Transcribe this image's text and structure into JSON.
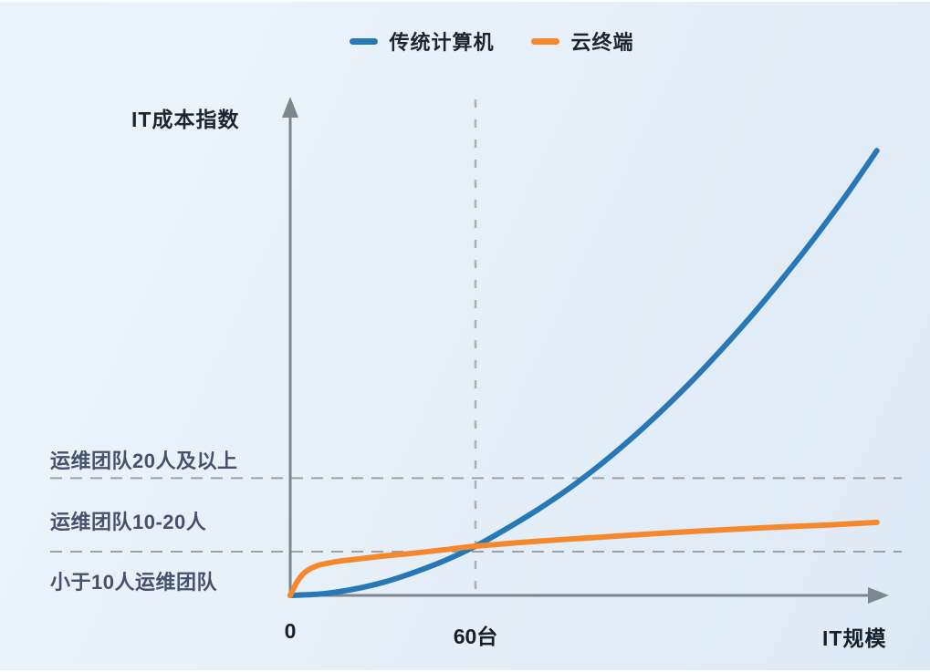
{
  "ui_colors": {
    "background_start": "#ecf4fb",
    "background_end": "#dde9f4",
    "axis_gray": "#7e868f",
    "dashed_gray": "#9aa1aa",
    "text_dark": "#1b2432",
    "text_zone": "#44536b"
  },
  "chart_data": {
    "type": "line",
    "title": "",
    "xlabel": "IT规模",
    "ylabel": "IT成本指数",
    "x_unit": "台",
    "x_range": [
      0,
      194
    ],
    "y_range": [
      0,
      10
    ],
    "grid": false,
    "legend_position": "top-center",
    "x_ticks": [
      {
        "x": 0,
        "label": "0"
      },
      {
        "x": 60,
        "label": "60台"
      }
    ],
    "series": [
      {
        "name": "传统计算机",
        "color": "#2878b8",
        "x": [
          0,
          10,
          20,
          30,
          40,
          50,
          60,
          70,
          80,
          90,
          100,
          110,
          120,
          130,
          140,
          150,
          160,
          170,
          180,
          190
        ],
        "y": [
          0,
          0.03,
          0.12,
          0.26,
          0.46,
          0.7,
          0.99,
          1.34,
          1.72,
          2.14,
          2.61,
          3.13,
          3.7,
          4.31,
          4.97,
          5.67,
          6.42,
          7.21,
          8.05,
          8.95
        ]
      },
      {
        "name": "云终端",
        "color": "#f5872c",
        "x": [
          0,
          2,
          4,
          6,
          8,
          10,
          15,
          20,
          30,
          40,
          50,
          60,
          80,
          100,
          120,
          140,
          160,
          175,
          190
        ],
        "y": [
          0,
          0.25,
          0.42,
          0.52,
          0.58,
          0.62,
          0.68,
          0.72,
          0.79,
          0.85,
          0.92,
          0.99,
          1.09,
          1.17,
          1.25,
          1.32,
          1.38,
          1.42,
          1.47
        ]
      }
    ],
    "crossing_point": {
      "x": 60,
      "y": 0.99
    },
    "reference_lines": [
      {
        "orientation": "vertical",
        "x": 60,
        "style": "dashed"
      },
      {
        "orientation": "horizontal",
        "y": 2.36,
        "style": "dashed"
      },
      {
        "orientation": "horizontal",
        "y": 0.88,
        "style": "dashed"
      }
    ],
    "annotations": [
      {
        "text": "运维团队20人及以上",
        "position": "above-upper-dashed-line"
      },
      {
        "text": "运维团队10-20人",
        "position": "between-dashed-lines"
      },
      {
        "text": "小于10人运维团队",
        "position": "below-lower-dashed-line"
      }
    ]
  }
}
